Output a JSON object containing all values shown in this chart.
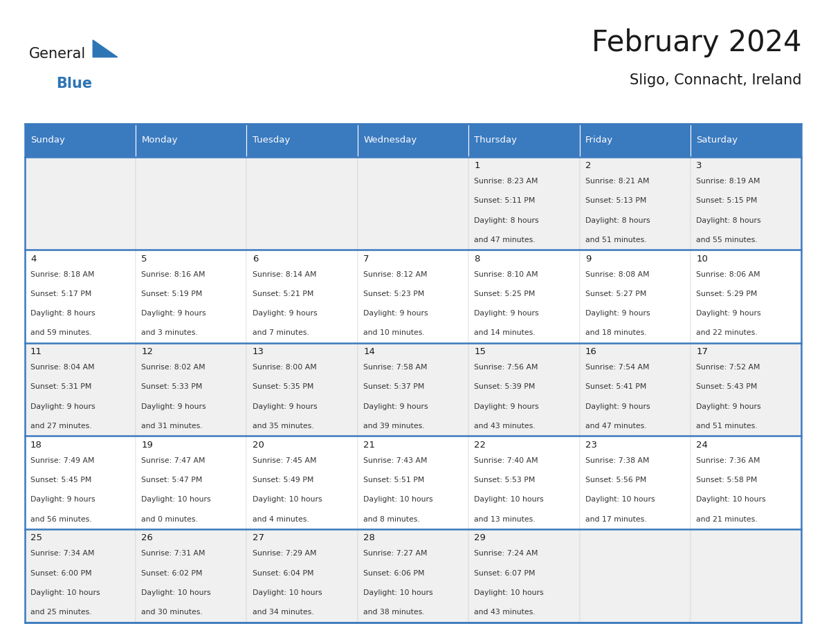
{
  "title": "February 2024",
  "subtitle": "Sligo, Connacht, Ireland",
  "days_of_week": [
    "Sunday",
    "Monday",
    "Tuesday",
    "Wednesday",
    "Thursday",
    "Friday",
    "Saturday"
  ],
  "header_bg": "#3a7abf",
  "header_text": "#ffffff",
  "cell_bg_odd": "#f0f0f0",
  "cell_bg_even": "#ffffff",
  "cell_border": "#3a7abf",
  "row_sep_color": "#3a7abf",
  "title_color": "#1a1a1a",
  "subtitle_color": "#1a1a1a",
  "text_color": "#333333",
  "day_num_color": "#1a1a1a",
  "calendar_data": [
    [
      null,
      null,
      null,
      null,
      {
        "day": 1,
        "sunrise": "8:23 AM",
        "sunset": "5:11 PM",
        "daylight_h": "8 hours",
        "daylight_m": "and 47 minutes."
      },
      {
        "day": 2,
        "sunrise": "8:21 AM",
        "sunset": "5:13 PM",
        "daylight_h": "8 hours",
        "daylight_m": "and 51 minutes."
      },
      {
        "day": 3,
        "sunrise": "8:19 AM",
        "sunset": "5:15 PM",
        "daylight_h": "8 hours",
        "daylight_m": "and 55 minutes."
      }
    ],
    [
      {
        "day": 4,
        "sunrise": "8:18 AM",
        "sunset": "5:17 PM",
        "daylight_h": "8 hours",
        "daylight_m": "and 59 minutes."
      },
      {
        "day": 5,
        "sunrise": "8:16 AM",
        "sunset": "5:19 PM",
        "daylight_h": "9 hours",
        "daylight_m": "and 3 minutes."
      },
      {
        "day": 6,
        "sunrise": "8:14 AM",
        "sunset": "5:21 PM",
        "daylight_h": "9 hours",
        "daylight_m": "and 7 minutes."
      },
      {
        "day": 7,
        "sunrise": "8:12 AM",
        "sunset": "5:23 PM",
        "daylight_h": "9 hours",
        "daylight_m": "and 10 minutes."
      },
      {
        "day": 8,
        "sunrise": "8:10 AM",
        "sunset": "5:25 PM",
        "daylight_h": "9 hours",
        "daylight_m": "and 14 minutes."
      },
      {
        "day": 9,
        "sunrise": "8:08 AM",
        "sunset": "5:27 PM",
        "daylight_h": "9 hours",
        "daylight_m": "and 18 minutes."
      },
      {
        "day": 10,
        "sunrise": "8:06 AM",
        "sunset": "5:29 PM",
        "daylight_h": "9 hours",
        "daylight_m": "and 22 minutes."
      }
    ],
    [
      {
        "day": 11,
        "sunrise": "8:04 AM",
        "sunset": "5:31 PM",
        "daylight_h": "9 hours",
        "daylight_m": "and 27 minutes."
      },
      {
        "day": 12,
        "sunrise": "8:02 AM",
        "sunset": "5:33 PM",
        "daylight_h": "9 hours",
        "daylight_m": "and 31 minutes."
      },
      {
        "day": 13,
        "sunrise": "8:00 AM",
        "sunset": "5:35 PM",
        "daylight_h": "9 hours",
        "daylight_m": "and 35 minutes."
      },
      {
        "day": 14,
        "sunrise": "7:58 AM",
        "sunset": "5:37 PM",
        "daylight_h": "9 hours",
        "daylight_m": "and 39 minutes."
      },
      {
        "day": 15,
        "sunrise": "7:56 AM",
        "sunset": "5:39 PM",
        "daylight_h": "9 hours",
        "daylight_m": "and 43 minutes."
      },
      {
        "day": 16,
        "sunrise": "7:54 AM",
        "sunset": "5:41 PM",
        "daylight_h": "9 hours",
        "daylight_m": "and 47 minutes."
      },
      {
        "day": 17,
        "sunrise": "7:52 AM",
        "sunset": "5:43 PM",
        "daylight_h": "9 hours",
        "daylight_m": "and 51 minutes."
      }
    ],
    [
      {
        "day": 18,
        "sunrise": "7:49 AM",
        "sunset": "5:45 PM",
        "daylight_h": "9 hours",
        "daylight_m": "and 56 minutes."
      },
      {
        "day": 19,
        "sunrise": "7:47 AM",
        "sunset": "5:47 PM",
        "daylight_h": "10 hours",
        "daylight_m": "and 0 minutes."
      },
      {
        "day": 20,
        "sunrise": "7:45 AM",
        "sunset": "5:49 PM",
        "daylight_h": "10 hours",
        "daylight_m": "and 4 minutes."
      },
      {
        "day": 21,
        "sunrise": "7:43 AM",
        "sunset": "5:51 PM",
        "daylight_h": "10 hours",
        "daylight_m": "and 8 minutes."
      },
      {
        "day": 22,
        "sunrise": "7:40 AM",
        "sunset": "5:53 PM",
        "daylight_h": "10 hours",
        "daylight_m": "and 13 minutes."
      },
      {
        "day": 23,
        "sunrise": "7:38 AM",
        "sunset": "5:56 PM",
        "daylight_h": "10 hours",
        "daylight_m": "and 17 minutes."
      },
      {
        "day": 24,
        "sunrise": "7:36 AM",
        "sunset": "5:58 PM",
        "daylight_h": "10 hours",
        "daylight_m": "and 21 minutes."
      }
    ],
    [
      {
        "day": 25,
        "sunrise": "7:34 AM",
        "sunset": "6:00 PM",
        "daylight_h": "10 hours",
        "daylight_m": "and 25 minutes."
      },
      {
        "day": 26,
        "sunrise": "7:31 AM",
        "sunset": "6:02 PM",
        "daylight_h": "10 hours",
        "daylight_m": "and 30 minutes."
      },
      {
        "day": 27,
        "sunrise": "7:29 AM",
        "sunset": "6:04 PM",
        "daylight_h": "10 hours",
        "daylight_m": "and 34 minutes."
      },
      {
        "day": 28,
        "sunrise": "7:27 AM",
        "sunset": "6:06 PM",
        "daylight_h": "10 hours",
        "daylight_m": "and 38 minutes."
      },
      {
        "day": 29,
        "sunrise": "7:24 AM",
        "sunset": "6:07 PM",
        "daylight_h": "10 hours",
        "daylight_m": "and 43 minutes."
      },
      null,
      null
    ]
  ],
  "logo_general_color": "#1a1a1a",
  "logo_blue_color": "#2e75b6",
  "logo_triangle_color": "#2e75b6",
  "fig_width": 11.88,
  "fig_height": 9.18,
  "dpi": 100
}
